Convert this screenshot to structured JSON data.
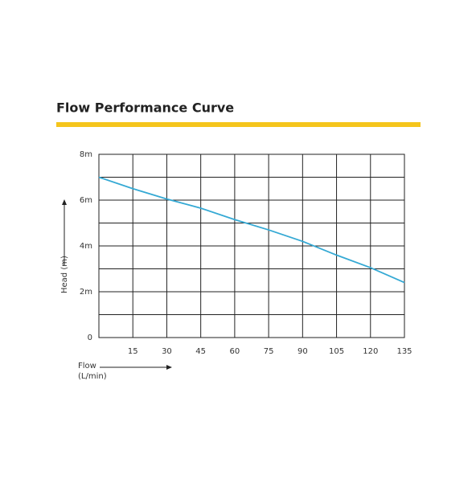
{
  "chart_data": {
    "type": "line",
    "title": "Flow Performance Curve",
    "accent_color": "#f5c51c",
    "x_label": "Flow",
    "x_unit": "(L/min)",
    "y_label": "Head (m)",
    "x": [
      0,
      15,
      30,
      45,
      60,
      75,
      90,
      105,
      120,
      135
    ],
    "series": [
      {
        "color": "#35a9d4",
        "values": [
          7.0,
          6.5,
          6.05,
          5.65,
          5.15,
          4.7,
          4.2,
          3.6,
          3.05,
          2.4
        ]
      }
    ],
    "xlim": [
      0,
      135
    ],
    "xticks": [
      15,
      30,
      45,
      60,
      75,
      90,
      105,
      120,
      135
    ],
    "ylim": [
      0,
      8
    ],
    "yticks": [
      0,
      {
        "value": 2,
        "label": "2m"
      },
      {
        "value": 4,
        "label": "4m"
      },
      {
        "value": 6,
        "label": "6m"
      },
      {
        "value": 8,
        "label": "8m"
      }
    ],
    "y_minor_grid": [
      1,
      3,
      5,
      7
    ],
    "grid": true
  }
}
